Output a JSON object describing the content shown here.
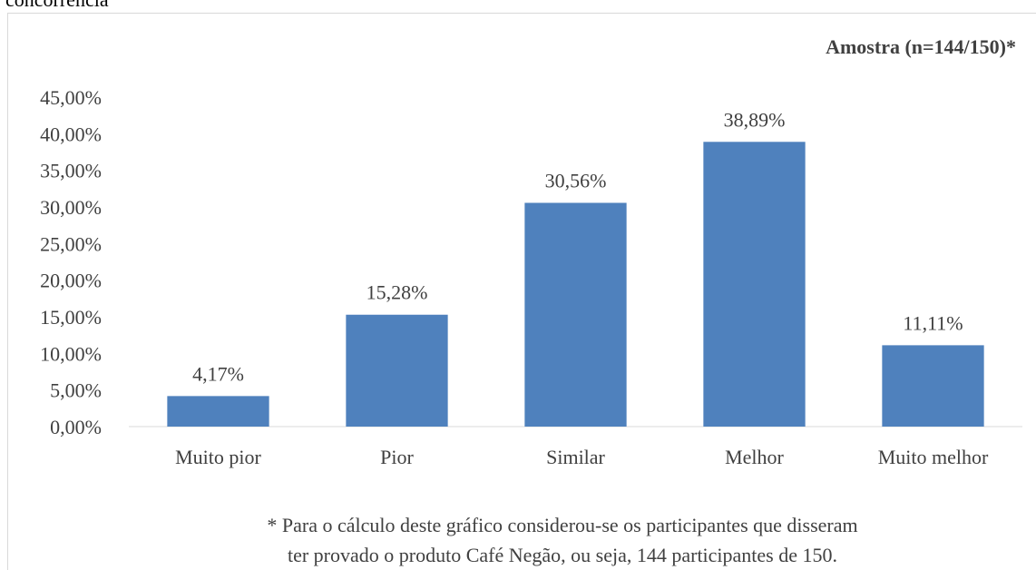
{
  "chart_data": {
    "type": "bar",
    "title": "concorrência",
    "annotation": "Amostra (n=144/150)*",
    "categories": [
      "Muito pior",
      "Pior",
      "Similar",
      "Melhor",
      "Muito melhor"
    ],
    "values": [
      4.17,
      15.28,
      30.56,
      38.89,
      11.11
    ],
    "value_labels": [
      "4,17%",
      "15,28%",
      "30,56%",
      "38,89%",
      "11,11%"
    ],
    "color": "#4f81bd",
    "ylim": [
      0,
      45
    ],
    "yticks": [
      {
        "value": 0,
        "label": "0,00%"
      },
      {
        "value": 5,
        "label": "5,00%"
      },
      {
        "value": 10,
        "label": "10,00%"
      },
      {
        "value": 15,
        "label": "15,00%"
      },
      {
        "value": 20,
        "label": "20,00%"
      },
      {
        "value": 25,
        "label": "25,00%"
      },
      {
        "value": 30,
        "label": "30,00%"
      },
      {
        "value": 35,
        "label": "35,00%"
      },
      {
        "value": 40,
        "label": "40,00%"
      },
      {
        "value": 45,
        "label": "45,00%"
      }
    ],
    "grid": false,
    "footnote": [
      "* Para o cálculo deste gráfico considerou-se os participantes que disseram",
      "ter provado o produto Café Negão, ou seja, 144 participantes de 150."
    ]
  }
}
